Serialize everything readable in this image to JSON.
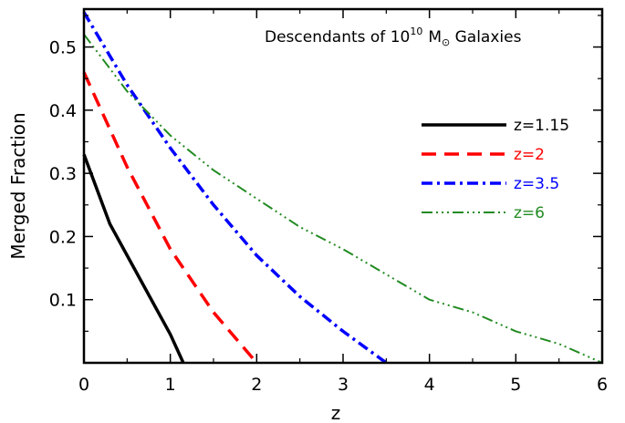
{
  "chart_data": {
    "type": "line",
    "title": {
      "prefix": "Descendants of ",
      "base": "10",
      "exponent": "10",
      "mass": "M",
      "sun_symbol": "⊙",
      "suffix": " Galaxies"
    },
    "xlabel": "z",
    "ylabel": "Merged Fraction",
    "xlim": [
      0,
      6
    ],
    "ylim": [
      0,
      0.56
    ],
    "xticks": [
      0,
      1,
      2,
      3,
      4,
      5,
      6
    ],
    "xtick_labels": [
      "0",
      "1",
      "2",
      "3",
      "4",
      "5",
      "6"
    ],
    "yticks": [
      0.1,
      0.2,
      0.3,
      0.4,
      0.5
    ],
    "ytick_labels": [
      "0.1",
      "0.2",
      "0.3",
      "0.4",
      "0.5"
    ],
    "grid": false,
    "legend_position": "right",
    "series": [
      {
        "name": "z=1.15",
        "color": "#000000",
        "dash": "solid",
        "x": [
          0,
          0.3,
          0.7,
          1.0,
          1.15
        ],
        "y": [
          0.33,
          0.22,
          0.12,
          0.045,
          0.0
        ]
      },
      {
        "name": "z=2",
        "color": "#ff0000",
        "dash": "dash",
        "x": [
          0,
          0.5,
          1.0,
          1.5,
          2.0
        ],
        "y": [
          0.46,
          0.31,
          0.18,
          0.08,
          0.0
        ]
      },
      {
        "name": "z=3.5",
        "color": "#0000ff",
        "dash": "dashdot",
        "x": [
          0,
          0.5,
          1.0,
          1.5,
          2.0,
          2.5,
          3.0,
          3.5
        ],
        "y": [
          0.555,
          0.44,
          0.34,
          0.25,
          0.17,
          0.105,
          0.05,
          0.0
        ]
      },
      {
        "name": "z=6",
        "color": "#228b22",
        "dash": "dashdotdotdot",
        "x": [
          0,
          0.5,
          1.0,
          1.5,
          2.0,
          2.5,
          3.0,
          3.5,
          4.0,
          4.5,
          5.0,
          5.5,
          6.0
        ],
        "y": [
          0.52,
          0.43,
          0.36,
          0.305,
          0.26,
          0.215,
          0.18,
          0.14,
          0.1,
          0.08,
          0.05,
          0.03,
          0.0
        ]
      }
    ]
  }
}
